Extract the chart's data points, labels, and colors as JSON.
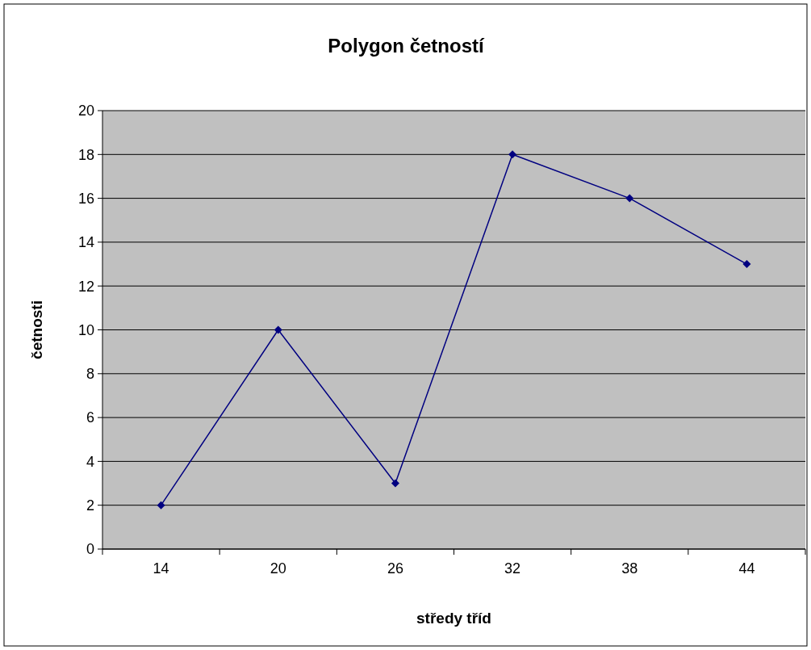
{
  "chart_data": {
    "type": "line",
    "title": "Polygon četností",
    "xlabel": "středy tříd",
    "ylabel": "četnosti",
    "categories": [
      "14",
      "20",
      "26",
      "32",
      "38",
      "44"
    ],
    "series": [
      {
        "color": "#000080",
        "values": [
          2,
          10,
          3,
          18,
          16,
          13
        ]
      }
    ],
    "ylim": [
      0,
      20
    ],
    "yticks": [
      0,
      2,
      4,
      6,
      8,
      10,
      12,
      14,
      16,
      18,
      20
    ],
    "grid": "y",
    "marker": "diamond",
    "line_style": "solid"
  }
}
